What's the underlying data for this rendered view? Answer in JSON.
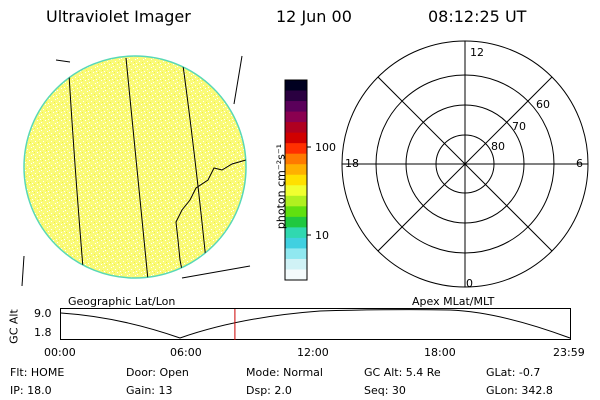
{
  "header": {
    "instrument": "Ultraviolet Imager",
    "date": "12 Jun 00",
    "time": "08:12:25 UT"
  },
  "colorbar": {
    "unit_label": "photon cm⁻²s⁻¹",
    "tick_100": "100",
    "tick_10": "10",
    "colors": [
      "#000020",
      "#2a0040",
      "#5a005a",
      "#8a0050",
      "#b00020",
      "#d00000",
      "#ff3000",
      "#ff7a00",
      "#ffb000",
      "#ffe000",
      "#f0ff30",
      "#b0f020",
      "#60e010",
      "#20c840",
      "#30d8b0",
      "#40d0e0",
      "#90e8f0",
      "#d0f2f6",
      "#f4fbfc"
    ]
  },
  "polar_grid": {
    "lat_labels": [
      "60",
      "70",
      "80"
    ],
    "mlt_labels": {
      "top": "12",
      "left": "18",
      "right": "6",
      "bottom": "0"
    }
  },
  "captions": {
    "left": "Geographic Lat/Lon",
    "right": "Apex MLat/MLT"
  },
  "altitude_plot": {
    "ylabel": "GC Alt",
    "y_ticks": [
      "9.0",
      "1.8"
    ],
    "x_ticks": [
      "00:00",
      "06:00",
      "12:00",
      "18:00",
      "23:59"
    ],
    "curve_color": "#000000",
    "marker_color": "#cc0000",
    "current_time_hours": 8.2
  },
  "status": {
    "flt": "Flt:  HOME",
    "ip": "IP:  18.0",
    "door": "Door:  Open",
    "gain": "Gain:  13",
    "mode": "Mode:  Normal",
    "dsp": "Dsp:      2.0",
    "gc_alt": "GC Alt:  5.4  Re",
    "seq": "Seq:  30",
    "glat": "GLat:    -0.7",
    "glon": "GLon:  342.8"
  },
  "colors": {
    "disk_fill": "#fafa70",
    "disk_edge": "#58d8b8",
    "grid": "#000000"
  }
}
